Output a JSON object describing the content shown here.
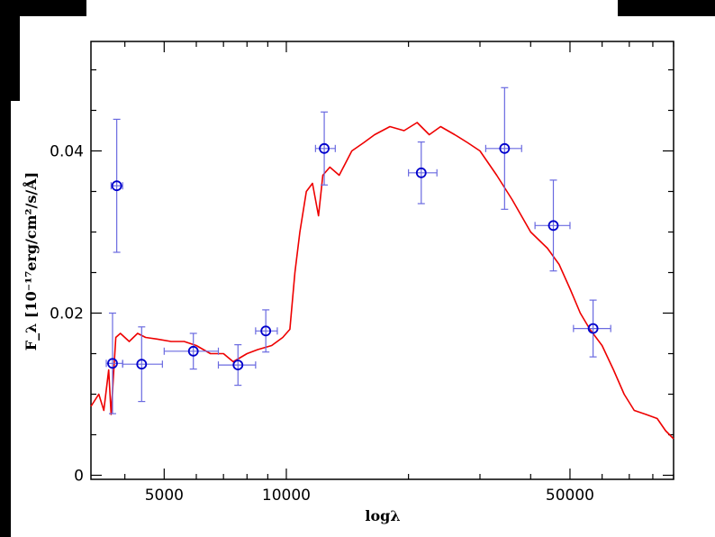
{
  "chart_data": {
    "type": "scatter",
    "title": "",
    "xlabel": "logλ",
    "ylabel": "F_λ [10⁻¹⁷erg/cm²/s/Å]",
    "xscale": "log",
    "xlim": [
      3300,
      90000
    ],
    "ylim": [
      -0.0005,
      0.0535
    ],
    "x_ticks": [
      5000,
      10000,
      50000
    ],
    "x_tick_labels": [
      "5000",
      "10000",
      "50000"
    ],
    "y_ticks": [
      0,
      0.02,
      0.04
    ],
    "y_tick_labels": [
      "0",
      "0.02",
      "0.04"
    ],
    "grid": false,
    "legend": "none",
    "colors": {
      "model": "#ee0000",
      "points": "#0000cc",
      "errorbars": "#6a6ae0"
    },
    "series": [
      {
        "kind": "line",
        "points": [
          [
            3300,
            0.0085
          ],
          [
            3450,
            0.01
          ],
          [
            3550,
            0.008
          ],
          [
            3650,
            0.013
          ],
          [
            3700,
            0.0075
          ],
          [
            3800,
            0.017
          ],
          [
            3900,
            0.0175
          ],
          [
            4100,
            0.0165
          ],
          [
            4300,
            0.0175
          ],
          [
            4500,
            0.017
          ],
          [
            4800,
            0.0168
          ],
          [
            5200,
            0.0165
          ],
          [
            5600,
            0.0165
          ],
          [
            6000,
            0.016
          ],
          [
            6500,
            0.015
          ],
          [
            7000,
            0.015
          ],
          [
            7400,
            0.014
          ],
          [
            8000,
            0.015
          ],
          [
            8500,
            0.0155
          ],
          [
            9200,
            0.016
          ],
          [
            9800,
            0.017
          ],
          [
            10200,
            0.018
          ],
          [
            10500,
            0.025
          ],
          [
            10800,
            0.03
          ],
          [
            11200,
            0.035
          ],
          [
            11600,
            0.036
          ],
          [
            12000,
            0.032
          ],
          [
            12300,
            0.037
          ],
          [
            12800,
            0.038
          ],
          [
            13500,
            0.037
          ],
          [
            14500,
            0.04
          ],
          [
            15500,
            0.041
          ],
          [
            16500,
            0.042
          ],
          [
            18000,
            0.043
          ],
          [
            19500,
            0.0425
          ],
          [
            21000,
            0.0435
          ],
          [
            22500,
            0.042
          ],
          [
            24000,
            0.043
          ],
          [
            26000,
            0.042
          ],
          [
            28000,
            0.041
          ],
          [
            30000,
            0.04
          ],
          [
            33000,
            0.037
          ],
          [
            36000,
            0.034
          ],
          [
            40000,
            0.03
          ],
          [
            44000,
            0.028
          ],
          [
            47000,
            0.026
          ],
          [
            50000,
            0.023
          ],
          [
            53000,
            0.02
          ],
          [
            56000,
            0.018
          ],
          [
            60000,
            0.016
          ],
          [
            64000,
            0.013
          ],
          [
            68000,
            0.01
          ],
          [
            72000,
            0.008
          ],
          [
            77000,
            0.0075
          ],
          [
            82000,
            0.007
          ],
          [
            86000,
            0.0055
          ],
          [
            90000,
            0.0045
          ]
        ]
      },
      {
        "kind": "points",
        "points": [
          {
            "x": 3820,
            "y": 0.0357,
            "xlo": 3700,
            "xhi": 3950,
            "yerr": 0.0082
          },
          {
            "x": 3730,
            "y": 0.0138,
            "xlo": 3600,
            "xhi": 3950,
            "yerr": 0.0062
          },
          {
            "x": 4400,
            "y": 0.0137,
            "xlo": 3950,
            "xhi": 4950,
            "yerr": 0.0046
          },
          {
            "x": 5900,
            "y": 0.0153,
            "xlo": 5000,
            "xhi": 6800,
            "yerr": 0.0022
          },
          {
            "x": 7600,
            "y": 0.0136,
            "xlo": 6800,
            "xhi": 8400,
            "yerr": 0.0025
          },
          {
            "x": 8900,
            "y": 0.0178,
            "xlo": 8400,
            "xhi": 9500,
            "yerr": 0.0026
          },
          {
            "x": 12400,
            "y": 0.0403,
            "xlo": 11800,
            "xhi": 13200,
            "yerr": 0.0045
          },
          {
            "x": 21500,
            "y": 0.0373,
            "xlo": 20000,
            "xhi": 23500,
            "yerr": 0.0038
          },
          {
            "x": 34500,
            "y": 0.0403,
            "xlo": 31000,
            "xhi": 38000,
            "yerr": 0.0075
          },
          {
            "x": 45500,
            "y": 0.0308,
            "xlo": 41000,
            "xhi": 50000,
            "yerr": 0.0056
          },
          {
            "x": 57000,
            "y": 0.0181,
            "xlo": 51000,
            "xhi": 63000,
            "yerr": 0.0035
          }
        ]
      }
    ]
  }
}
